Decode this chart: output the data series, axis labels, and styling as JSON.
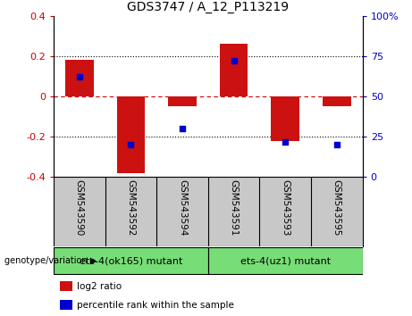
{
  "title": "GDS3747 / A_12_P113219",
  "categories": [
    "GSM543590",
    "GSM543592",
    "GSM543594",
    "GSM543591",
    "GSM543593",
    "GSM543595"
  ],
  "log2_ratio": [
    0.18,
    -0.38,
    -0.05,
    0.26,
    -0.22,
    -0.05
  ],
  "percentile_rank": [
    62,
    20,
    30,
    72,
    22,
    20
  ],
  "bar_color": "#cc1111",
  "dot_color": "#0000cc",
  "ylim_left": [
    -0.4,
    0.4
  ],
  "ylim_right": [
    0,
    100
  ],
  "yticks_left": [
    -0.4,
    -0.2,
    0.0,
    0.2,
    0.4
  ],
  "yticks_right": [
    0,
    25,
    50,
    75,
    100
  ],
  "ytick_labels_right": [
    "0",
    "25",
    "50",
    "75",
    "100%"
  ],
  "groups": [
    {
      "label": "ets-4(ok165) mutant",
      "indices": [
        0,
        1,
        2
      ],
      "color": "#77dd77"
    },
    {
      "label": "ets-4(uz1) mutant",
      "indices": [
        3,
        4,
        5
      ],
      "color": "#77dd77"
    }
  ],
  "group_header": "genotype/variation",
  "legend_log2": "log2 ratio",
  "legend_pct": "percentile rank within the sample",
  "hline_color": "#cc0000",
  "grid_color": "#000000",
  "bar_width": 0.55,
  "dot_size": 25,
  "axis_label_color_left": "#cc0000",
  "axis_label_color_right": "#0000cc",
  "label_area_bg": "#c8c8c8",
  "title_fontsize": 10,
  "tick_fontsize": 8,
  "label_fontsize": 7.5,
  "group_fontsize": 8
}
